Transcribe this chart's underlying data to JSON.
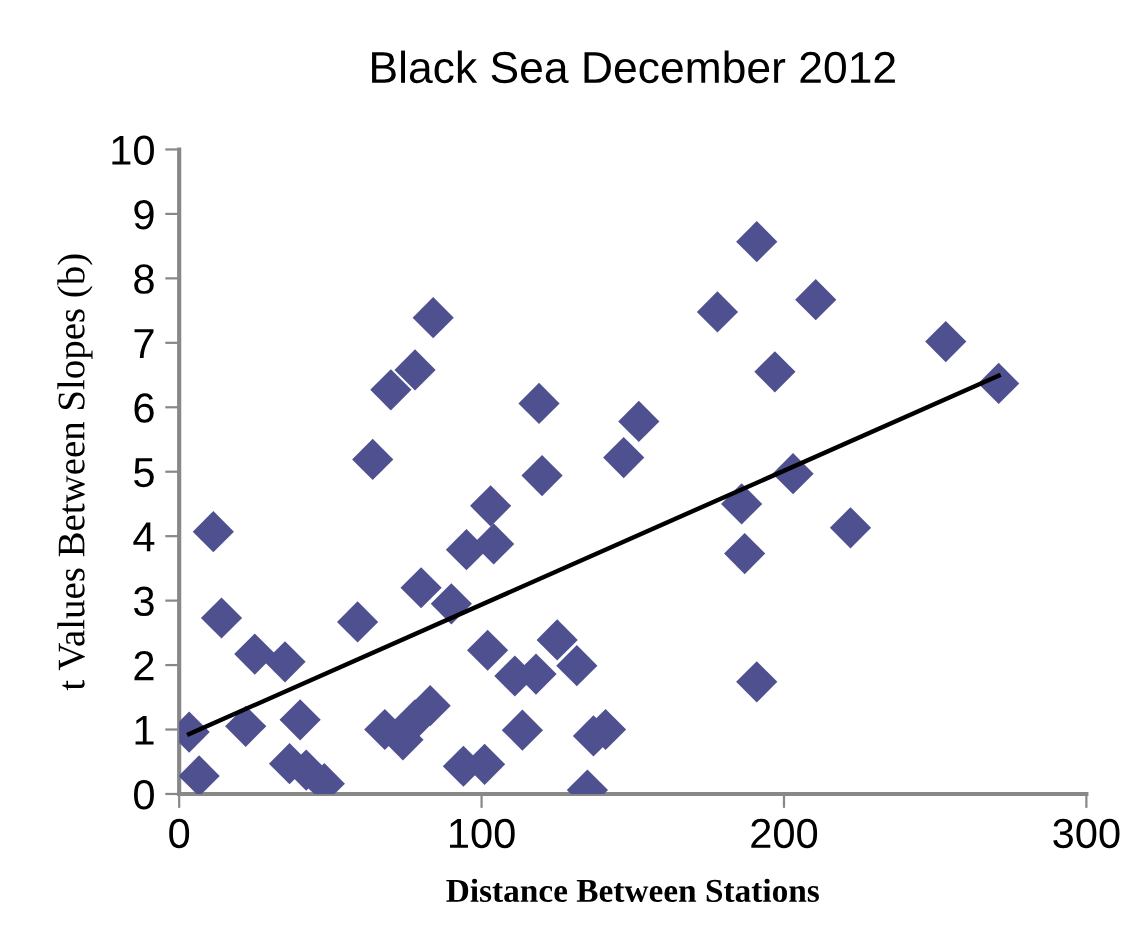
{
  "chart_data": {
    "type": "scatter",
    "title": "Black Sea December 2012",
    "xlabel": "Distance Between Stations",
    "ylabel": "t Values Between Slopes (b)",
    "marker": "diamond",
    "grid": false,
    "legend": false,
    "xlim": [
      0,
      300
    ],
    "ylim": [
      0,
      10
    ],
    "xticks": [
      0,
      100,
      200,
      300
    ],
    "yticks": [
      0,
      1,
      2,
      3,
      4,
      5,
      6,
      7,
      8,
      9,
      10
    ],
    "series": [
      {
        "color": "#4f5090",
        "x": [
          3.3,
          6.6,
          11.3,
          14,
          22,
          25,
          35,
          40,
          36.5,
          42,
          48,
          59,
          64,
          70,
          78,
          84,
          68,
          74,
          78,
          83,
          80,
          90,
          95,
          94,
          101,
          102,
          103,
          104,
          178,
          119,
          152,
          147,
          120,
          125,
          131,
          131.5,
          118,
          111,
          113.5,
          137,
          141,
          135,
          191,
          210.5,
          197,
          253.5,
          271,
          203,
          186,
          222,
          187,
          191
        ],
        "values": [
          0.96,
          0.28,
          4.07,
          2.73,
          1.05,
          2.17,
          2.05,
          1.15,
          0.47,
          0.37,
          0.16,
          2.67,
          5.19,
          6.27,
          6.58,
          7.39,
          1.0,
          0.84,
          1.15,
          1.37,
          3.2,
          2.95,
          3.79,
          0.43,
          0.46,
          2.23,
          4.47,
          3.88,
          7.48,
          6.06,
          5.78,
          5.22,
          4.94,
          2.39,
          null,
          1.99,
          1.86,
          1.83,
          0.99,
          0.9,
          1.0,
          0.06,
          8.57,
          7.67,
          6.55,
          7.02,
          6.37,
          4.97,
          4.5,
          4.13,
          3.73,
          1.74
        ]
      },
      {
        "type": "line",
        "color": "#000000",
        "marker": "none",
        "x": [
          3.3,
          271
        ],
        "values": [
          0.93,
          6.49
        ]
      }
    ]
  }
}
